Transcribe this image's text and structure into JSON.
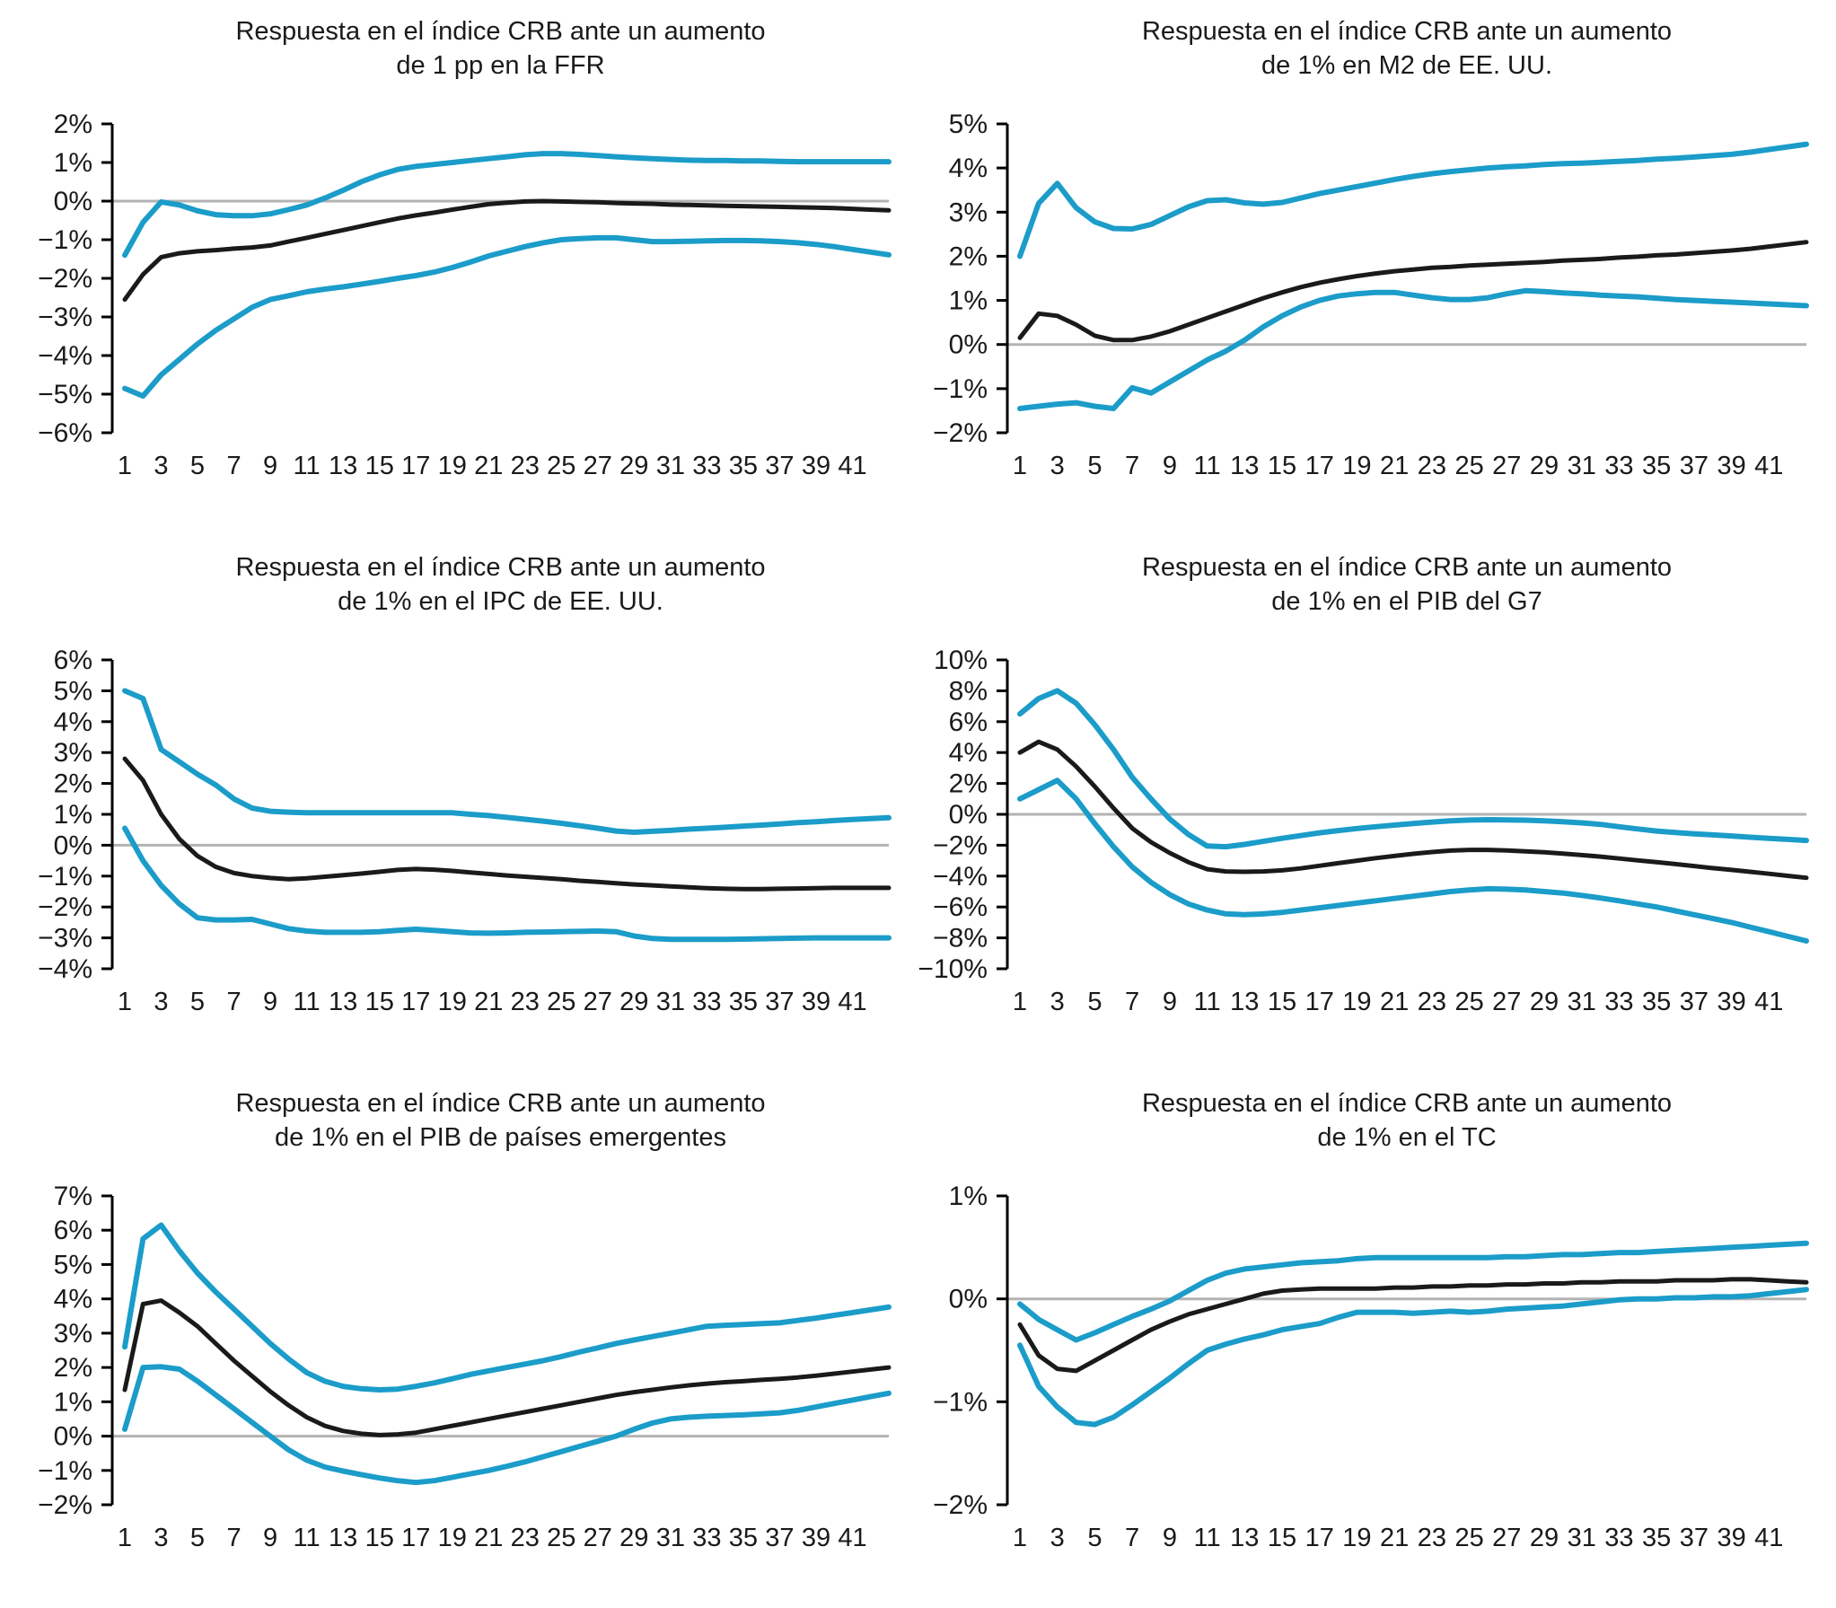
{
  "page": {
    "background": "#ffffff"
  },
  "styles": {
    "band_color": "#1b9cc9",
    "center_color": "#1a1a1a",
    "zero_line_color": "#b3b3b3",
    "axis_color": "#000000"
  },
  "chart_data": [
    {
      "type": "line",
      "title_line1": "Respuesta en el índice CRB ante un aumento",
      "title_line2": "de 1 pp en la FFR",
      "ylim": [
        -6,
        2
      ],
      "yticks": [
        2,
        1,
        0,
        -1,
        -2,
        -3,
        -4,
        -5,
        -6
      ],
      "ytick_suffix": "%",
      "zero_line": true,
      "grid": false,
      "legend": "none",
      "xticks": [
        1,
        3,
        5,
        7,
        9,
        11,
        13,
        15,
        17,
        19,
        21,
        23,
        25,
        27,
        29,
        31,
        33,
        35,
        37,
        39,
        41
      ],
      "series": [
        {
          "name": "upper-band",
          "color": "blue",
          "values": [
            -1.4,
            -0.55,
            -0.02,
            -0.1,
            -0.25,
            -0.35,
            -0.38,
            -0.38,
            -0.33,
            -0.22,
            -0.1,
            0.08,
            0.28,
            0.5,
            0.68,
            0.82,
            0.9,
            0.95,
            1.0,
            1.05,
            1.1,
            1.15,
            1.2,
            1.23,
            1.23,
            1.21,
            1.18,
            1.15,
            1.12,
            1.1,
            1.08,
            1.06,
            1.05,
            1.05,
            1.04,
            1.04,
            1.03,
            1.02,
            1.02,
            1.02,
            1.02
          ]
        },
        {
          "name": "center",
          "color": "black",
          "values": [
            -2.55,
            -1.9,
            -1.45,
            -1.35,
            -1.3,
            -1.27,
            -1.23,
            -1.2,
            -1.15,
            -1.05,
            -0.95,
            -0.85,
            -0.75,
            -0.65,
            -0.55,
            -0.45,
            -0.37,
            -0.3,
            -0.22,
            -0.15,
            -0.08,
            -0.04,
            -0.01,
            0.0,
            -0.01,
            -0.02,
            -0.03,
            -0.05,
            -0.06,
            -0.07,
            -0.09,
            -0.1,
            -0.11,
            -0.12,
            -0.13,
            -0.14,
            -0.15,
            -0.16,
            -0.17,
            -0.18,
            -0.2
          ]
        },
        {
          "name": "lower-band",
          "color": "blue",
          "values": [
            -4.85,
            -5.05,
            -4.5,
            -4.1,
            -3.7,
            -3.35,
            -3.05,
            -2.75,
            -2.55,
            -2.45,
            -2.35,
            -2.28,
            -2.22,
            -2.15,
            -2.08,
            -2.0,
            -1.93,
            -1.84,
            -1.72,
            -1.58,
            -1.42,
            -1.3,
            -1.18,
            -1.08,
            -1.0,
            -0.97,
            -0.95,
            -0.95,
            -1.0,
            -1.05,
            -1.05,
            -1.04,
            -1.03,
            -1.02,
            -1.02,
            -1.03,
            -1.05,
            -1.08,
            -1.12,
            -1.18,
            -1.25
          ]
        }
      ]
    },
    {
      "type": "line",
      "title_line1": "Respuesta en el índice CRB ante un aumento",
      "title_line2": "de 1% en M2 de EE. UU.",
      "ylim": [
        -2,
        5
      ],
      "yticks": [
        5,
        4,
        3,
        2,
        1,
        0,
        -1,
        -2
      ],
      "ytick_suffix": "%",
      "zero_line": true,
      "grid": false,
      "legend": "none",
      "xticks": [
        1,
        3,
        5,
        7,
        9,
        11,
        13,
        15,
        17,
        19,
        21,
        23,
        25,
        27,
        29,
        31,
        33,
        35,
        37,
        39,
        41
      ],
      "series": [
        {
          "name": "upper-band",
          "color": "blue",
          "values": [
            2.0,
            3.2,
            3.65,
            3.1,
            2.78,
            2.63,
            2.62,
            2.72,
            2.92,
            3.12,
            3.26,
            3.28,
            3.21,
            3.18,
            3.22,
            3.32,
            3.42,
            3.5,
            3.58,
            3.66,
            3.74,
            3.81,
            3.87,
            3.92,
            3.96,
            4.0,
            4.03,
            4.05,
            4.08,
            4.1,
            4.11,
            4.13,
            4.15,
            4.17,
            4.2,
            4.22,
            4.25,
            4.28,
            4.31,
            4.36,
            4.42
          ]
        },
        {
          "name": "center",
          "color": "black",
          "values": [
            0.15,
            0.7,
            0.65,
            0.45,
            0.2,
            0.1,
            0.1,
            0.18,
            0.3,
            0.45,
            0.6,
            0.75,
            0.9,
            1.05,
            1.18,
            1.3,
            1.4,
            1.48,
            1.55,
            1.61,
            1.66,
            1.7,
            1.74,
            1.76,
            1.79,
            1.81,
            1.83,
            1.85,
            1.87,
            1.9,
            1.92,
            1.94,
            1.97,
            1.99,
            2.02,
            2.04,
            2.07,
            2.1,
            2.13,
            2.17,
            2.22
          ]
        },
        {
          "name": "lower-band",
          "color": "blue",
          "values": [
            -1.45,
            -1.4,
            -1.35,
            -1.32,
            -1.4,
            -1.45,
            -0.98,
            -1.1,
            -0.85,
            -0.6,
            -0.35,
            -0.15,
            0.1,
            0.4,
            0.65,
            0.85,
            1.0,
            1.1,
            1.15,
            1.18,
            1.18,
            1.12,
            1.06,
            1.02,
            1.02,
            1.06,
            1.15,
            1.22,
            1.2,
            1.17,
            1.15,
            1.12,
            1.1,
            1.08,
            1.05,
            1.02,
            1.0,
            0.98,
            0.96,
            0.94,
            0.92
          ]
        }
      ]
    },
    {
      "type": "line",
      "title_line1": "Respuesta en el índice CRB ante un aumento",
      "title_line2": "de 1% en el IPC de EE. UU.",
      "ylim": [
        -4,
        6
      ],
      "yticks": [
        6,
        5,
        4,
        3,
        2,
        1,
        0,
        -1,
        -2,
        -3,
        -4
      ],
      "ytick_suffix": "%",
      "zero_line": true,
      "grid": false,
      "legend": "none",
      "xticks": [
        1,
        3,
        5,
        7,
        9,
        11,
        13,
        15,
        17,
        19,
        21,
        23,
        25,
        27,
        29,
        31,
        33,
        35,
        37,
        39,
        41
      ],
      "series": [
        {
          "name": "upper-band",
          "color": "blue",
          "values": [
            5.0,
            4.75,
            3.1,
            2.7,
            2.3,
            1.95,
            1.5,
            1.2,
            1.1,
            1.07,
            1.05,
            1.05,
            1.05,
            1.05,
            1.05,
            1.05,
            1.05,
            1.05,
            1.05,
            1.0,
            0.96,
            0.9,
            0.84,
            0.78,
            0.71,
            0.63,
            0.55,
            0.46,
            0.42,
            0.45,
            0.48,
            0.52,
            0.55,
            0.58,
            0.62,
            0.65,
            0.69,
            0.73,
            0.76,
            0.8,
            0.83
          ]
        },
        {
          "name": "center",
          "color": "black",
          "values": [
            2.8,
            2.1,
            1.0,
            0.2,
            -0.35,
            -0.7,
            -0.9,
            -1.0,
            -1.06,
            -1.1,
            -1.07,
            -1.02,
            -0.97,
            -0.92,
            -0.86,
            -0.8,
            -0.77,
            -0.79,
            -0.83,
            -0.88,
            -0.93,
            -0.98,
            -1.02,
            -1.06,
            -1.1,
            -1.15,
            -1.19,
            -1.23,
            -1.27,
            -1.3,
            -1.33,
            -1.36,
            -1.39,
            -1.41,
            -1.42,
            -1.42,
            -1.41,
            -1.4,
            -1.39,
            -1.38,
            -1.38
          ]
        },
        {
          "name": "lower-band",
          "color": "blue",
          "values": [
            0.55,
            -0.5,
            -1.3,
            -1.9,
            -2.35,
            -2.42,
            -2.42,
            -2.4,
            -2.55,
            -2.7,
            -2.78,
            -2.82,
            -2.82,
            -2.82,
            -2.8,
            -2.76,
            -2.72,
            -2.76,
            -2.8,
            -2.84,
            -2.85,
            -2.84,
            -2.82,
            -2.81,
            -2.8,
            -2.79,
            -2.78,
            -2.8,
            -2.94,
            -3.02,
            -3.05,
            -3.05,
            -3.05,
            -3.05,
            -3.04,
            -3.03,
            -3.02,
            -3.01,
            -3.0,
            -3.0,
            -3.0
          ]
        }
      ]
    },
    {
      "type": "line",
      "title_line1": "Respuesta en el índice CRB ante un aumento",
      "title_line2": "de 1% en el PIB del G7",
      "ylim": [
        -10,
        10
      ],
      "yticks": [
        10,
        8,
        6,
        4,
        2,
        0,
        -2,
        -4,
        -6,
        -8,
        -10
      ],
      "ytick_suffix": "%",
      "zero_line": true,
      "grid": false,
      "legend": "none",
      "xticks": [
        1,
        3,
        5,
        7,
        9,
        11,
        13,
        15,
        17,
        19,
        21,
        23,
        25,
        27,
        29,
        31,
        33,
        35,
        37,
        39,
        41
      ],
      "series": [
        {
          "name": "upper-band",
          "color": "blue",
          "values": [
            6.5,
            7.5,
            8.0,
            7.2,
            5.8,
            4.2,
            2.4,
            1.0,
            -0.3,
            -1.3,
            -2.05,
            -2.1,
            -1.95,
            -1.75,
            -1.55,
            -1.38,
            -1.2,
            -1.05,
            -0.92,
            -0.8,
            -0.7,
            -0.6,
            -0.5,
            -0.42,
            -0.37,
            -0.35,
            -0.36,
            -0.38,
            -0.42,
            -0.48,
            -0.55,
            -0.65,
            -0.8,
            -0.95,
            -1.08,
            -1.18,
            -1.26,
            -1.33,
            -1.4,
            -1.48,
            -1.55
          ]
        },
        {
          "name": "center",
          "color": "black",
          "values": [
            4.0,
            4.7,
            4.2,
            3.1,
            1.8,
            0.4,
            -0.9,
            -1.8,
            -2.5,
            -3.1,
            -3.55,
            -3.7,
            -3.72,
            -3.7,
            -3.63,
            -3.5,
            -3.33,
            -3.16,
            -3.0,
            -2.84,
            -2.7,
            -2.56,
            -2.44,
            -2.35,
            -2.3,
            -2.3,
            -2.34,
            -2.4,
            -2.46,
            -2.54,
            -2.64,
            -2.74,
            -2.86,
            -2.98,
            -3.1,
            -3.22,
            -3.35,
            -3.48,
            -3.6,
            -3.72,
            -3.85
          ]
        },
        {
          "name": "lower-band",
          "color": "blue",
          "values": [
            1.0,
            1.6,
            2.2,
            1.0,
            -0.6,
            -2.1,
            -3.4,
            -4.4,
            -5.2,
            -5.8,
            -6.2,
            -6.45,
            -6.5,
            -6.45,
            -6.35,
            -6.2,
            -6.05,
            -5.9,
            -5.75,
            -5.6,
            -5.45,
            -5.3,
            -5.15,
            -5.0,
            -4.9,
            -4.82,
            -4.85,
            -4.9,
            -5.0,
            -5.1,
            -5.25,
            -5.42,
            -5.6,
            -5.8,
            -6.0,
            -6.25,
            -6.5,
            -6.75,
            -7.0,
            -7.3,
            -7.6
          ]
        }
      ]
    },
    {
      "type": "line",
      "title_line1": "Respuesta en el índice CRB ante un aumento",
      "title_line2": "de 1% en el PIB de países emergentes",
      "ylim": [
        -2,
        7
      ],
      "yticks": [
        7,
        6,
        5,
        4,
        3,
        2,
        1,
        0,
        -1,
        -2
      ],
      "ytick_suffix": "%",
      "zero_line": true,
      "grid": false,
      "legend": "none",
      "xticks": [
        1,
        3,
        5,
        7,
        9,
        11,
        13,
        15,
        17,
        19,
        21,
        23,
        25,
        27,
        29,
        31,
        33,
        35,
        37,
        39,
        41
      ],
      "series": [
        {
          "name": "upper-band",
          "color": "blue",
          "values": [
            2.6,
            5.75,
            6.15,
            5.4,
            4.75,
            4.2,
            3.7,
            3.2,
            2.7,
            2.25,
            1.85,
            1.6,
            1.45,
            1.38,
            1.35,
            1.37,
            1.45,
            1.55,
            1.67,
            1.8,
            1.9,
            2.0,
            2.1,
            2.2,
            2.32,
            2.45,
            2.57,
            2.7,
            2.8,
            2.9,
            3.0,
            3.1,
            3.2,
            3.23,
            3.25,
            3.28,
            3.3,
            3.37,
            3.44,
            3.52,
            3.6
          ]
        },
        {
          "name": "center",
          "color": "black",
          "values": [
            1.35,
            3.85,
            3.95,
            3.6,
            3.2,
            2.7,
            2.2,
            1.75,
            1.3,
            0.9,
            0.55,
            0.3,
            0.15,
            0.07,
            0.03,
            0.05,
            0.1,
            0.2,
            0.3,
            0.4,
            0.5,
            0.6,
            0.7,
            0.8,
            0.9,
            1.0,
            1.1,
            1.2,
            1.28,
            1.35,
            1.42,
            1.48,
            1.53,
            1.57,
            1.6,
            1.64,
            1.67,
            1.71,
            1.76,
            1.82,
            1.88
          ]
        },
        {
          "name": "lower-band",
          "color": "blue",
          "values": [
            0.2,
            2.0,
            2.02,
            1.95,
            1.6,
            1.2,
            0.8,
            0.4,
            0.0,
            -0.4,
            -0.7,
            -0.9,
            -1.02,
            -1.12,
            -1.22,
            -1.3,
            -1.35,
            -1.3,
            -1.2,
            -1.1,
            -1.0,
            -0.88,
            -0.75,
            -0.6,
            -0.45,
            -0.3,
            -0.15,
            0.0,
            0.2,
            0.38,
            0.5,
            0.55,
            0.58,
            0.6,
            0.62,
            0.65,
            0.68,
            0.75,
            0.85,
            0.95,
            1.05
          ]
        }
      ]
    },
    {
      "type": "line",
      "title_line1": "Respuesta en el índice CRB ante un aumento",
      "title_line2": "de 1% en el TC",
      "ylim": [
        -2,
        1
      ],
      "yticks": [
        1,
        0,
        -1,
        -2
      ],
      "ytick_suffix": "%",
      "zero_line": true,
      "grid": false,
      "legend": "none",
      "xticks": [
        1,
        3,
        5,
        7,
        9,
        11,
        13,
        15,
        17,
        19,
        21,
        23,
        25,
        27,
        29,
        31,
        33,
        35,
        37,
        39,
        41
      ],
      "series": [
        {
          "name": "upper-band",
          "color": "blue",
          "values": [
            -0.05,
            -0.2,
            -0.3,
            -0.4,
            -0.33,
            -0.25,
            -0.17,
            -0.1,
            -0.02,
            0.08,
            0.18,
            0.25,
            0.29,
            0.31,
            0.33,
            0.35,
            0.36,
            0.37,
            0.39,
            0.4,
            0.4,
            0.4,
            0.4,
            0.4,
            0.4,
            0.4,
            0.41,
            0.41,
            0.42,
            0.43,
            0.43,
            0.44,
            0.45,
            0.45,
            0.46,
            0.47,
            0.48,
            0.49,
            0.5,
            0.51,
            0.52
          ]
        },
        {
          "name": "center",
          "color": "black",
          "values": [
            -0.25,
            -0.55,
            -0.68,
            -0.7,
            -0.6,
            -0.5,
            -0.4,
            -0.3,
            -0.22,
            -0.15,
            -0.1,
            -0.05,
            0.0,
            0.05,
            0.08,
            0.09,
            0.1,
            0.1,
            0.1,
            0.1,
            0.11,
            0.11,
            0.12,
            0.12,
            0.13,
            0.13,
            0.14,
            0.14,
            0.15,
            0.15,
            0.16,
            0.16,
            0.17,
            0.17,
            0.17,
            0.18,
            0.18,
            0.18,
            0.19,
            0.19,
            0.18
          ]
        },
        {
          "name": "lower-band",
          "color": "blue",
          "values": [
            -0.45,
            -0.85,
            -1.05,
            -1.2,
            -1.22,
            -1.15,
            -1.03,
            -0.9,
            -0.77,
            -0.63,
            -0.5,
            -0.44,
            -0.39,
            -0.35,
            -0.3,
            -0.27,
            -0.24,
            -0.18,
            -0.13,
            -0.13,
            -0.13,
            -0.14,
            -0.13,
            -0.12,
            -0.13,
            -0.12,
            -0.1,
            -0.09,
            -0.08,
            -0.07,
            -0.05,
            -0.03,
            -0.01,
            0.0,
            0.0,
            0.01,
            0.01,
            0.02,
            0.02,
            0.03,
            0.05
          ]
        }
      ]
    }
  ]
}
